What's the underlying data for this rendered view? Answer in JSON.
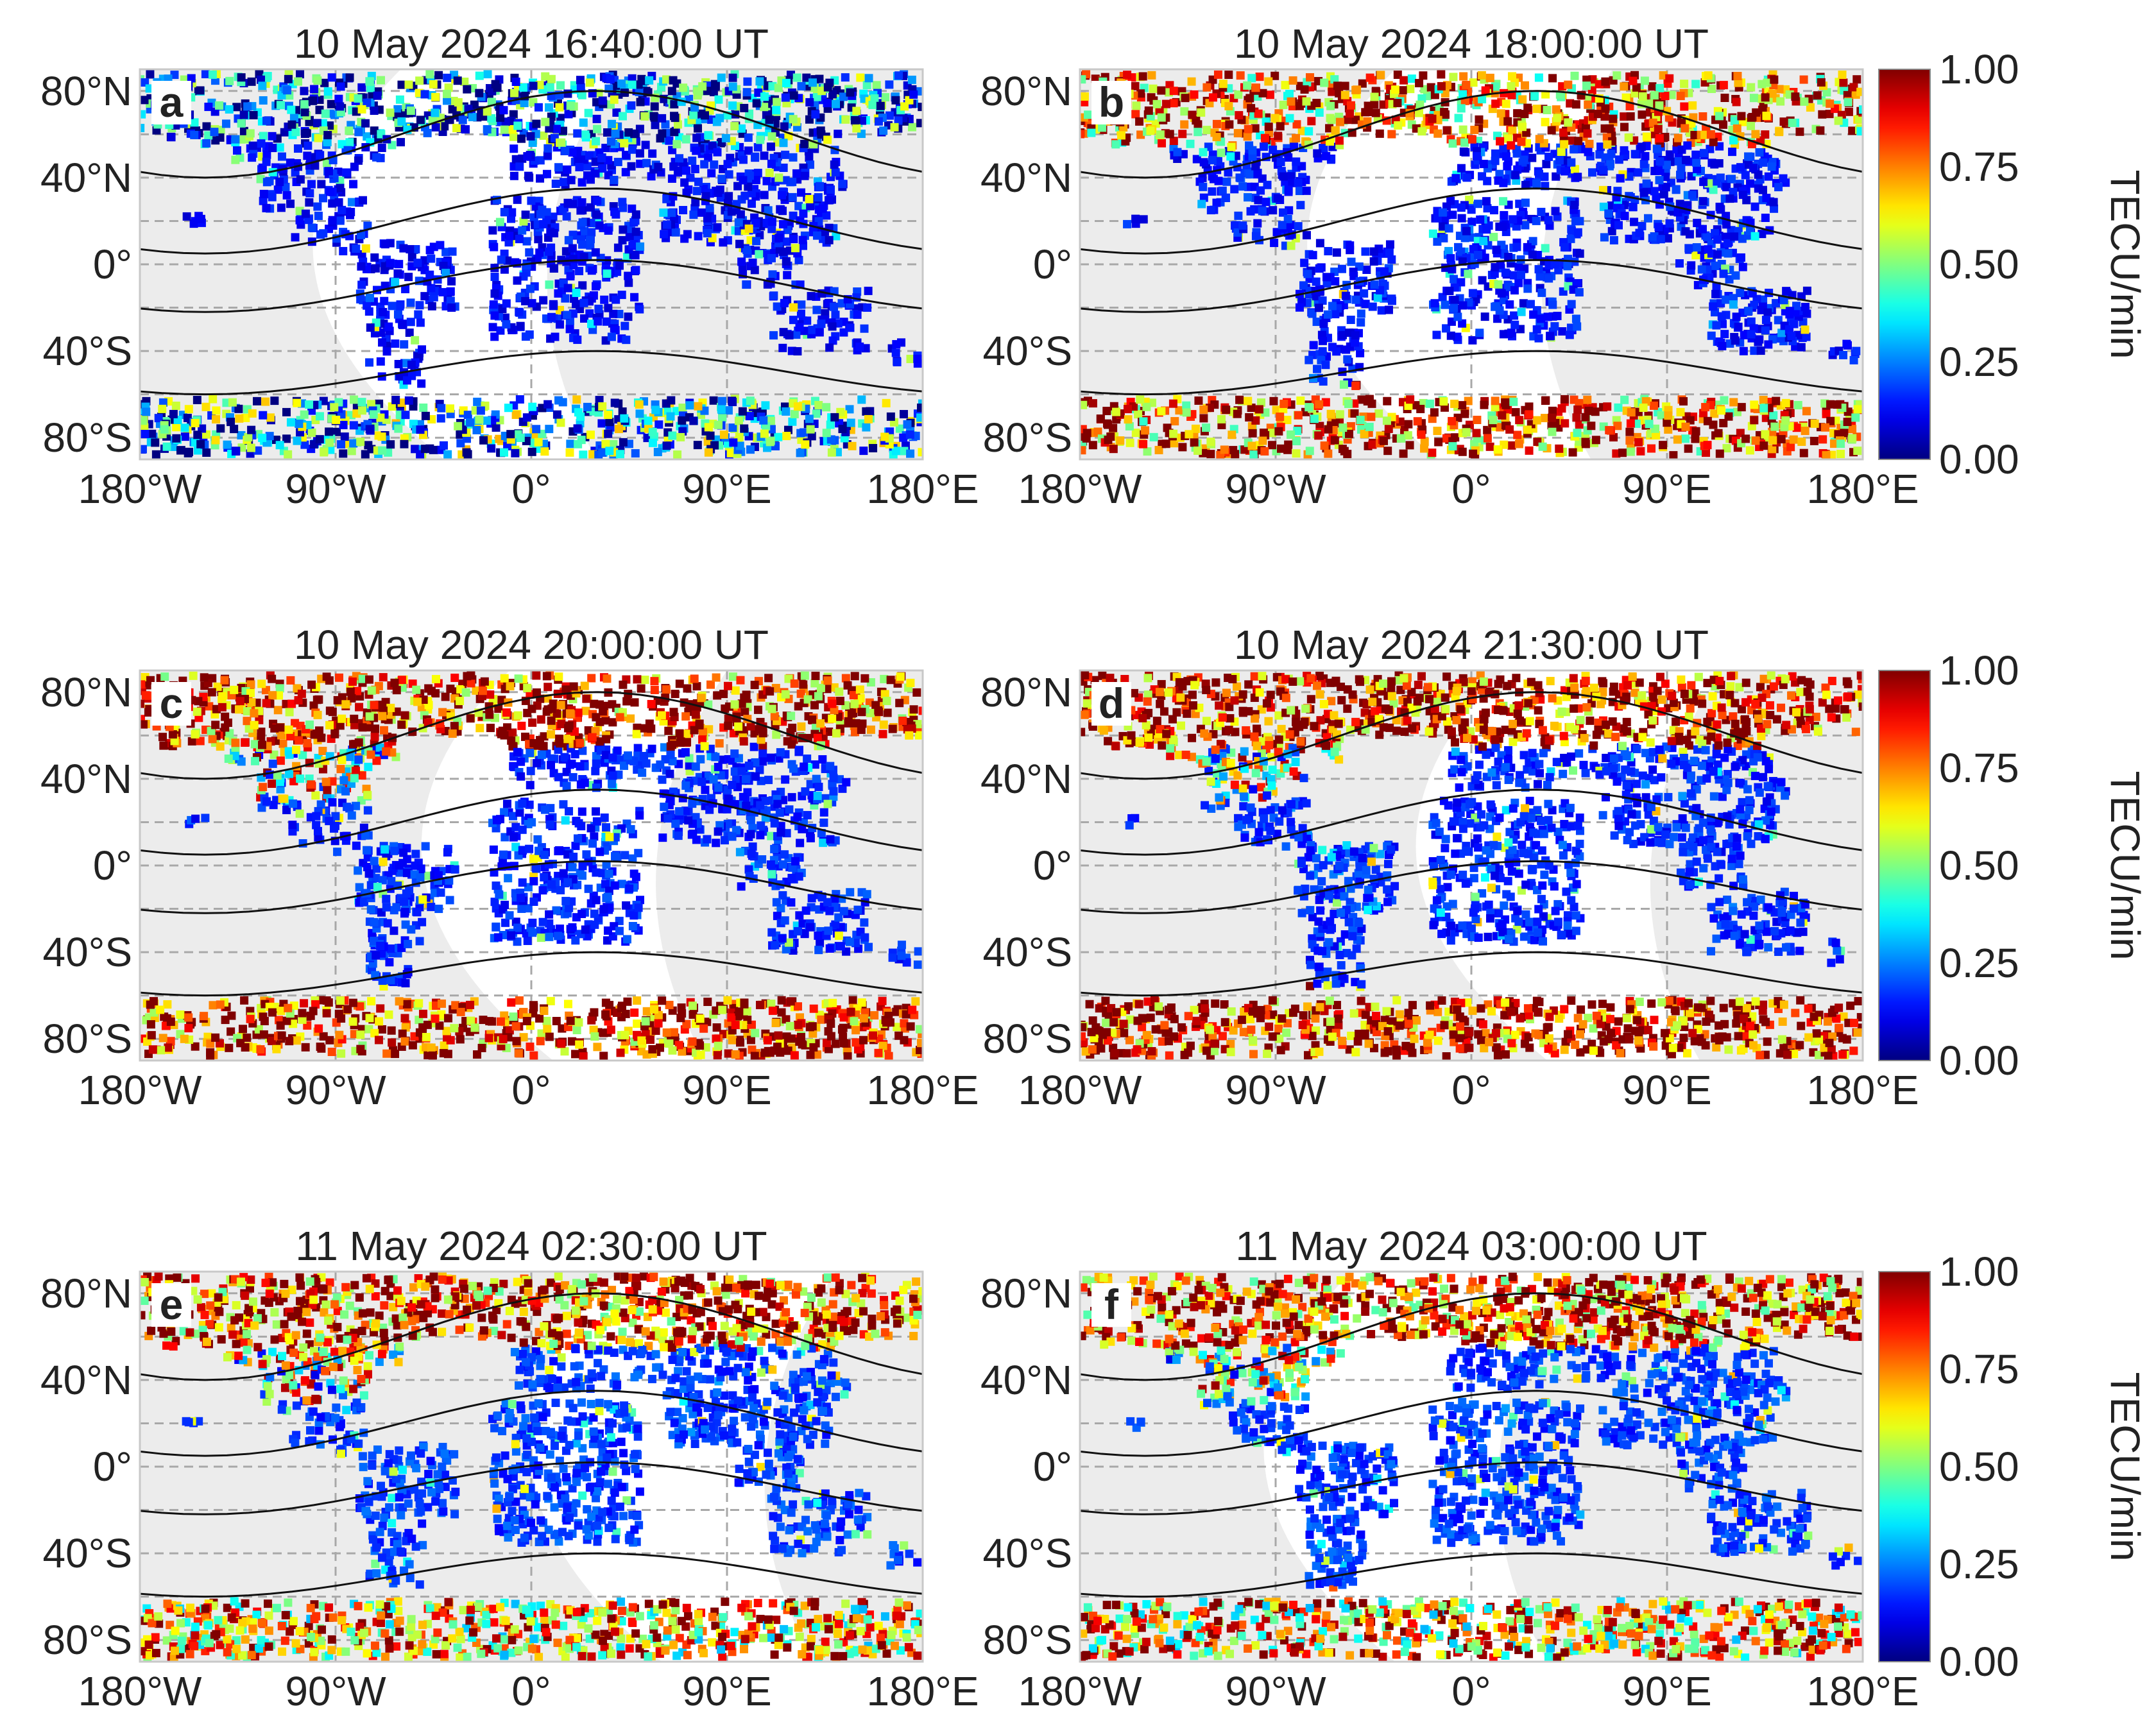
{
  "figure": {
    "colorbar": {
      "label": "TECU/min",
      "range": [
        0.0,
        1.0
      ],
      "tick_labels": [
        "1.00",
        "0.75",
        "0.50",
        "0.25",
        "0.00"
      ],
      "tick_values": [
        1.0,
        0.75,
        0.5,
        0.25,
        0.0
      ],
      "colormap": "jet"
    }
  },
  "chart_data": [
    {
      "type": "scatter",
      "panel_label": "a",
      "title": "10 May 2024 16:40:00 UT",
      "x_tick_labels": [
        "180°W",
        "90°W",
        "0°",
        "90°E",
        "180°E"
      ],
      "x_ticks": [
        -180,
        -90,
        0,
        90,
        180
      ],
      "y_tick_labels": [
        "80°N",
        "40°N",
        "0°",
        "40°S",
        "80°S"
      ],
      "y_ticks": [
        80,
        40,
        0,
        -40,
        -80
      ],
      "xlim": [
        -180,
        180
      ],
      "ylim": [
        -90,
        90
      ],
      "grid": true,
      "value_label": "TECU/min",
      "value_range": [
        0.0,
        1.0
      ],
      "auroral_north_mean": 0.22,
      "auroral_south_mean": 0.3,
      "background_mean": 0.07
    },
    {
      "type": "scatter",
      "panel_label": "b",
      "title": "10 May 2024 18:00:00 UT",
      "x_tick_labels": [
        "180°W",
        "90°W",
        "0°",
        "90°E",
        "180°E"
      ],
      "x_ticks": [
        -180,
        -90,
        0,
        90,
        180
      ],
      "y_tick_labels": [
        "80°N",
        "40°N",
        "0°",
        "40°S",
        "80°S"
      ],
      "y_ticks": [
        80,
        40,
        0,
        -40,
        -80
      ],
      "xlim": [
        -180,
        180
      ],
      "ylim": [
        -90,
        90
      ],
      "grid": true,
      "value_label": "TECU/min",
      "value_range": [
        0.0,
        1.0
      ],
      "auroral_north_mean": 0.78,
      "auroral_south_mean": 0.82,
      "background_mean": 0.08
    },
    {
      "type": "scatter",
      "panel_label": "c",
      "title": "10 May 2024 20:00:00 UT",
      "x_tick_labels": [
        "180°W",
        "90°W",
        "0°",
        "90°E",
        "180°E"
      ],
      "x_ticks": [
        -180,
        -90,
        0,
        90,
        180
      ],
      "y_tick_labels": [
        "80°N",
        "40°N",
        "0°",
        "40°S",
        "80°S"
      ],
      "y_ticks": [
        80,
        40,
        0,
        -40,
        -80
      ],
      "xlim": [
        -180,
        180
      ],
      "ylim": [
        -90,
        90
      ],
      "grid": true,
      "value_label": "TECU/min",
      "value_range": [
        0.0,
        1.0
      ],
      "auroral_north_mean": 0.88,
      "auroral_south_mean": 0.9,
      "background_mean": 0.1
    },
    {
      "type": "scatter",
      "panel_label": "d",
      "title": "10 May 2024 21:30:00 UT",
      "x_tick_labels": [
        "180°W",
        "90°W",
        "0°",
        "90°E",
        "180°E"
      ],
      "x_ticks": [
        -180,
        -90,
        0,
        90,
        180
      ],
      "y_tick_labels": [
        "80°N",
        "40°N",
        "0°",
        "40°S",
        "80°S"
      ],
      "y_ticks": [
        80,
        40,
        0,
        -40,
        -80
      ],
      "xlim": [
        -180,
        180
      ],
      "ylim": [
        -90,
        90
      ],
      "grid": true,
      "value_label": "TECU/min",
      "value_range": [
        0.0,
        1.0
      ],
      "auroral_north_mean": 0.92,
      "auroral_south_mean": 0.92,
      "background_mean": 0.1
    },
    {
      "type": "scatter",
      "panel_label": "e",
      "title": "11 May 2024 02:30:00 UT",
      "x_tick_labels": [
        "180°W",
        "90°W",
        "0°",
        "90°E",
        "180°E"
      ],
      "x_ticks": [
        -180,
        -90,
        0,
        90,
        180
      ],
      "y_tick_labels": [
        "80°N",
        "40°N",
        "0°",
        "40°S",
        "80°S"
      ],
      "y_ticks": [
        80,
        40,
        0,
        -40,
        -80
      ],
      "xlim": [
        -180,
        180
      ],
      "ylim": [
        -90,
        90
      ],
      "grid": true,
      "value_label": "TECU/min",
      "value_range": [
        0.0,
        1.0
      ],
      "auroral_north_mean": 0.85,
      "auroral_south_mean": 0.7,
      "background_mean": 0.12
    },
    {
      "type": "scatter",
      "panel_label": "f",
      "title": "11 May 2024 03:00:00 UT",
      "x_tick_labels": [
        "180°W",
        "90°W",
        "0°",
        "90°E",
        "180°E"
      ],
      "x_ticks": [
        -180,
        -90,
        0,
        90,
        180
      ],
      "y_tick_labels": [
        "80°N",
        "40°N",
        "0°",
        "40°S",
        "80°S"
      ],
      "y_ticks": [
        80,
        40,
        0,
        -40,
        -80
      ],
      "xlim": [
        -180,
        180
      ],
      "ylim": [
        -90,
        90
      ],
      "grid": true,
      "value_label": "TECU/min",
      "value_range": [
        0.0,
        1.0
      ],
      "auroral_north_mean": 0.85,
      "auroral_south_mean": 0.7,
      "background_mean": 0.12
    }
  ]
}
